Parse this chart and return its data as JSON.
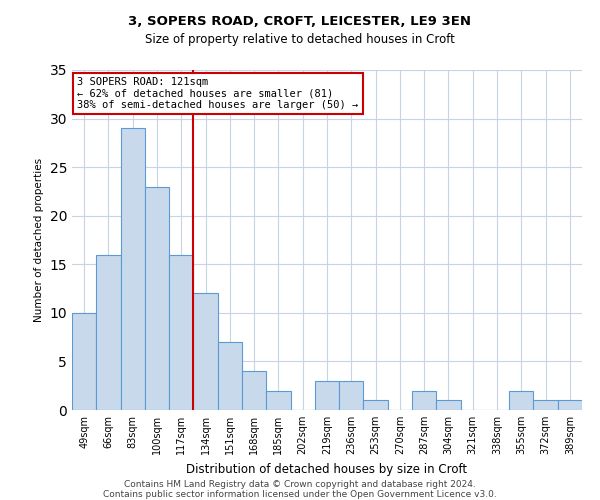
{
  "title1": "3, SOPERS ROAD, CROFT, LEICESTER, LE9 3EN",
  "title2": "Size of property relative to detached houses in Croft",
  "xlabel": "Distribution of detached houses by size in Croft",
  "ylabel": "Number of detached properties",
  "bar_labels": [
    "49sqm",
    "66sqm",
    "83sqm",
    "100sqm",
    "117sqm",
    "134sqm",
    "151sqm",
    "168sqm",
    "185sqm",
    "202sqm",
    "219sqm",
    "236sqm",
    "253sqm",
    "270sqm",
    "287sqm",
    "304sqm",
    "321sqm",
    "338sqm",
    "355sqm",
    "372sqm",
    "389sqm"
  ],
  "bar_values": [
    10,
    16,
    29,
    23,
    16,
    12,
    7,
    4,
    2,
    0,
    3,
    3,
    1,
    0,
    2,
    1,
    0,
    0,
    2,
    1,
    1
  ],
  "bar_color": "#c9d9ec",
  "bar_edgecolor": "#5b9bd5",
  "vline_x": 4.5,
  "vline_color": "#cc0000",
  "annotation_line1": "3 SOPERS ROAD: 121sqm",
  "annotation_line2": "← 62% of detached houses are smaller (81)",
  "annotation_line3": "38% of semi-detached houses are larger (50) →",
  "annotation_box_edgecolor": "#cc0000",
  "ylim": [
    0,
    35
  ],
  "yticks": [
    0,
    5,
    10,
    15,
    20,
    25,
    30,
    35
  ],
  "footer1": "Contains HM Land Registry data © Crown copyright and database right 2024.",
  "footer2": "Contains public sector information licensed under the Open Government Licence v3.0.",
  "bg_color": "#ffffff",
  "grid_color": "#c8d4e3"
}
